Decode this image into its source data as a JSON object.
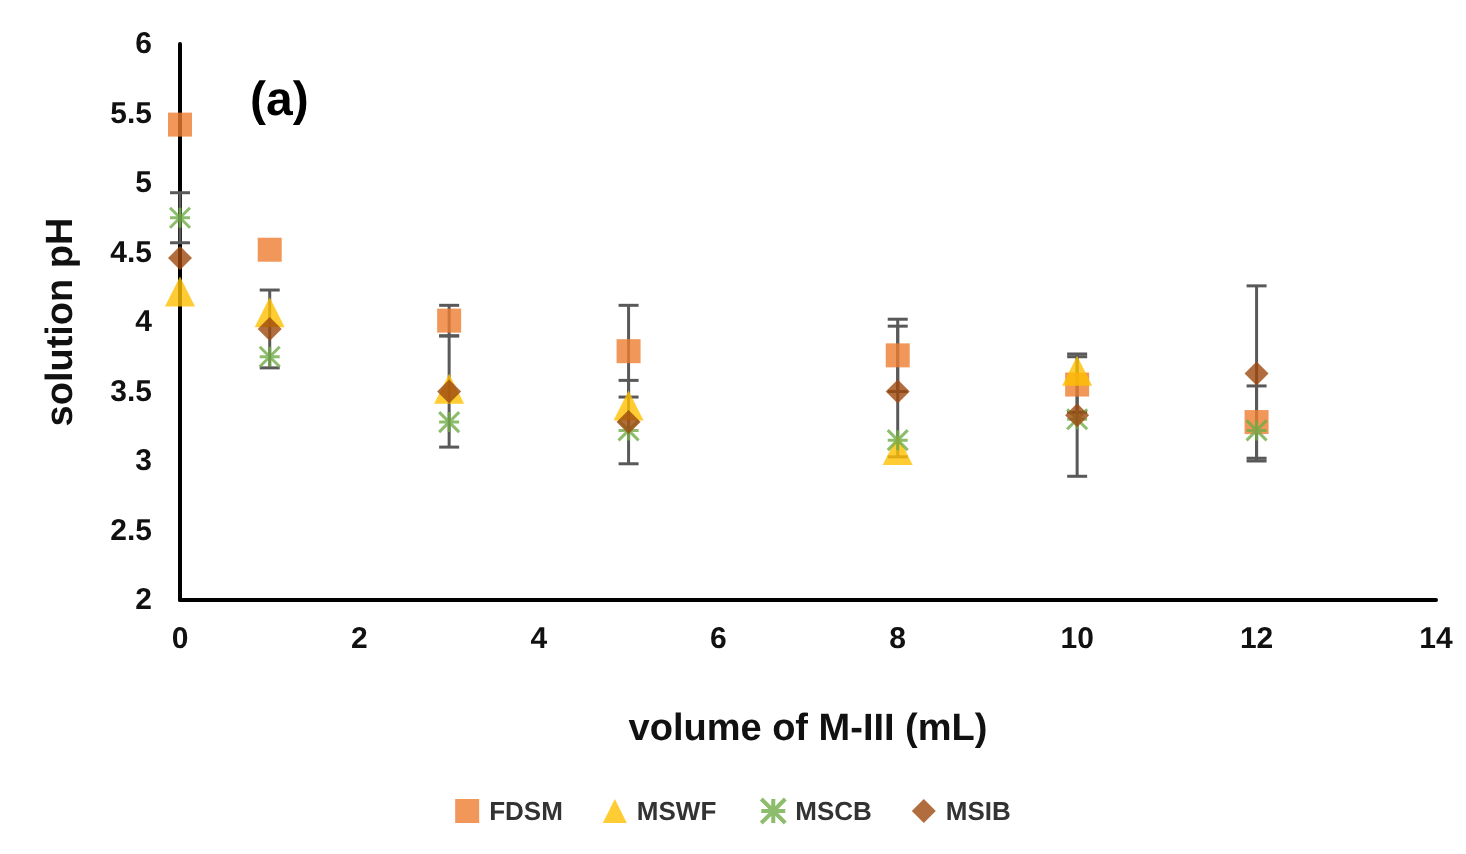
{
  "chart_data": {
    "type": "scatter",
    "xlabel": "volume of M-III (mL)",
    "ylabel": "solution pH",
    "annotations": [
      "(a)"
    ],
    "x": [
      0,
      1,
      3,
      5,
      8,
      10,
      12
    ],
    "series": [
      {
        "name": "FDSM",
        "color": "#ed7d31",
        "marker": "square",
        "values": [
          5.42,
          4.52,
          4.01,
          3.79,
          3.76,
          3.55,
          3.28
        ],
        "errors": [
          null,
          null,
          0.11,
          0.33,
          0.26,
          0.2,
          0.26
        ]
      },
      {
        "name": "MSWF",
        "color": "#ffc000",
        "marker": "triangle",
        "values": [
          4.22,
          4.07,
          3.52,
          3.4,
          3.08,
          3.65,
          null
        ]
      },
      {
        "name": "MSCB",
        "color": "#70ad47",
        "marker": "cross",
        "values": [
          4.75,
          3.75,
          3.28,
          3.22,
          3.15,
          3.3,
          3.22
        ],
        "errors": [
          0.18,
          null,
          null,
          null,
          null,
          null,
          null
        ]
      },
      {
        "name": "MSIB",
        "color": "#9e480e",
        "marker": "diamond",
        "values": [
          4.46,
          3.95,
          3.5,
          3.28,
          3.5,
          3.33,
          3.63
        ],
        "errors": [
          null,
          0.28,
          0.4,
          0.3,
          0.47,
          0.44,
          0.63
        ]
      }
    ],
    "xlim": [
      0,
      14
    ],
    "xticks": [
      0,
      2,
      4,
      6,
      8,
      10,
      12,
      14
    ],
    "ylim": [
      2,
      6
    ],
    "yticks": [
      2,
      2.5,
      3,
      3.5,
      4,
      4.5,
      5,
      5.5,
      6
    ],
    "grid": false,
    "legend": "bottom"
  }
}
